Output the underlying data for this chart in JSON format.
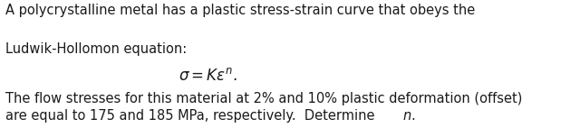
{
  "background_color": "#ffffff",
  "line1": "A polycrystalline metal has a plastic stress-strain curve that obeys the",
  "line2": "Ludwik-Hollomon equation:",
  "line3": "The flow stresses for this material at 2% and 10% plastic deformation (offset)",
  "line4_pre": "are equal to 175 and 185 MPa, respectively.  Determine ",
  "line4_italic": "n",
  "line4_end": ".",
  "text_color": "#1a1a1a",
  "font_size_body": 10.5,
  "font_size_eq": 12.0
}
